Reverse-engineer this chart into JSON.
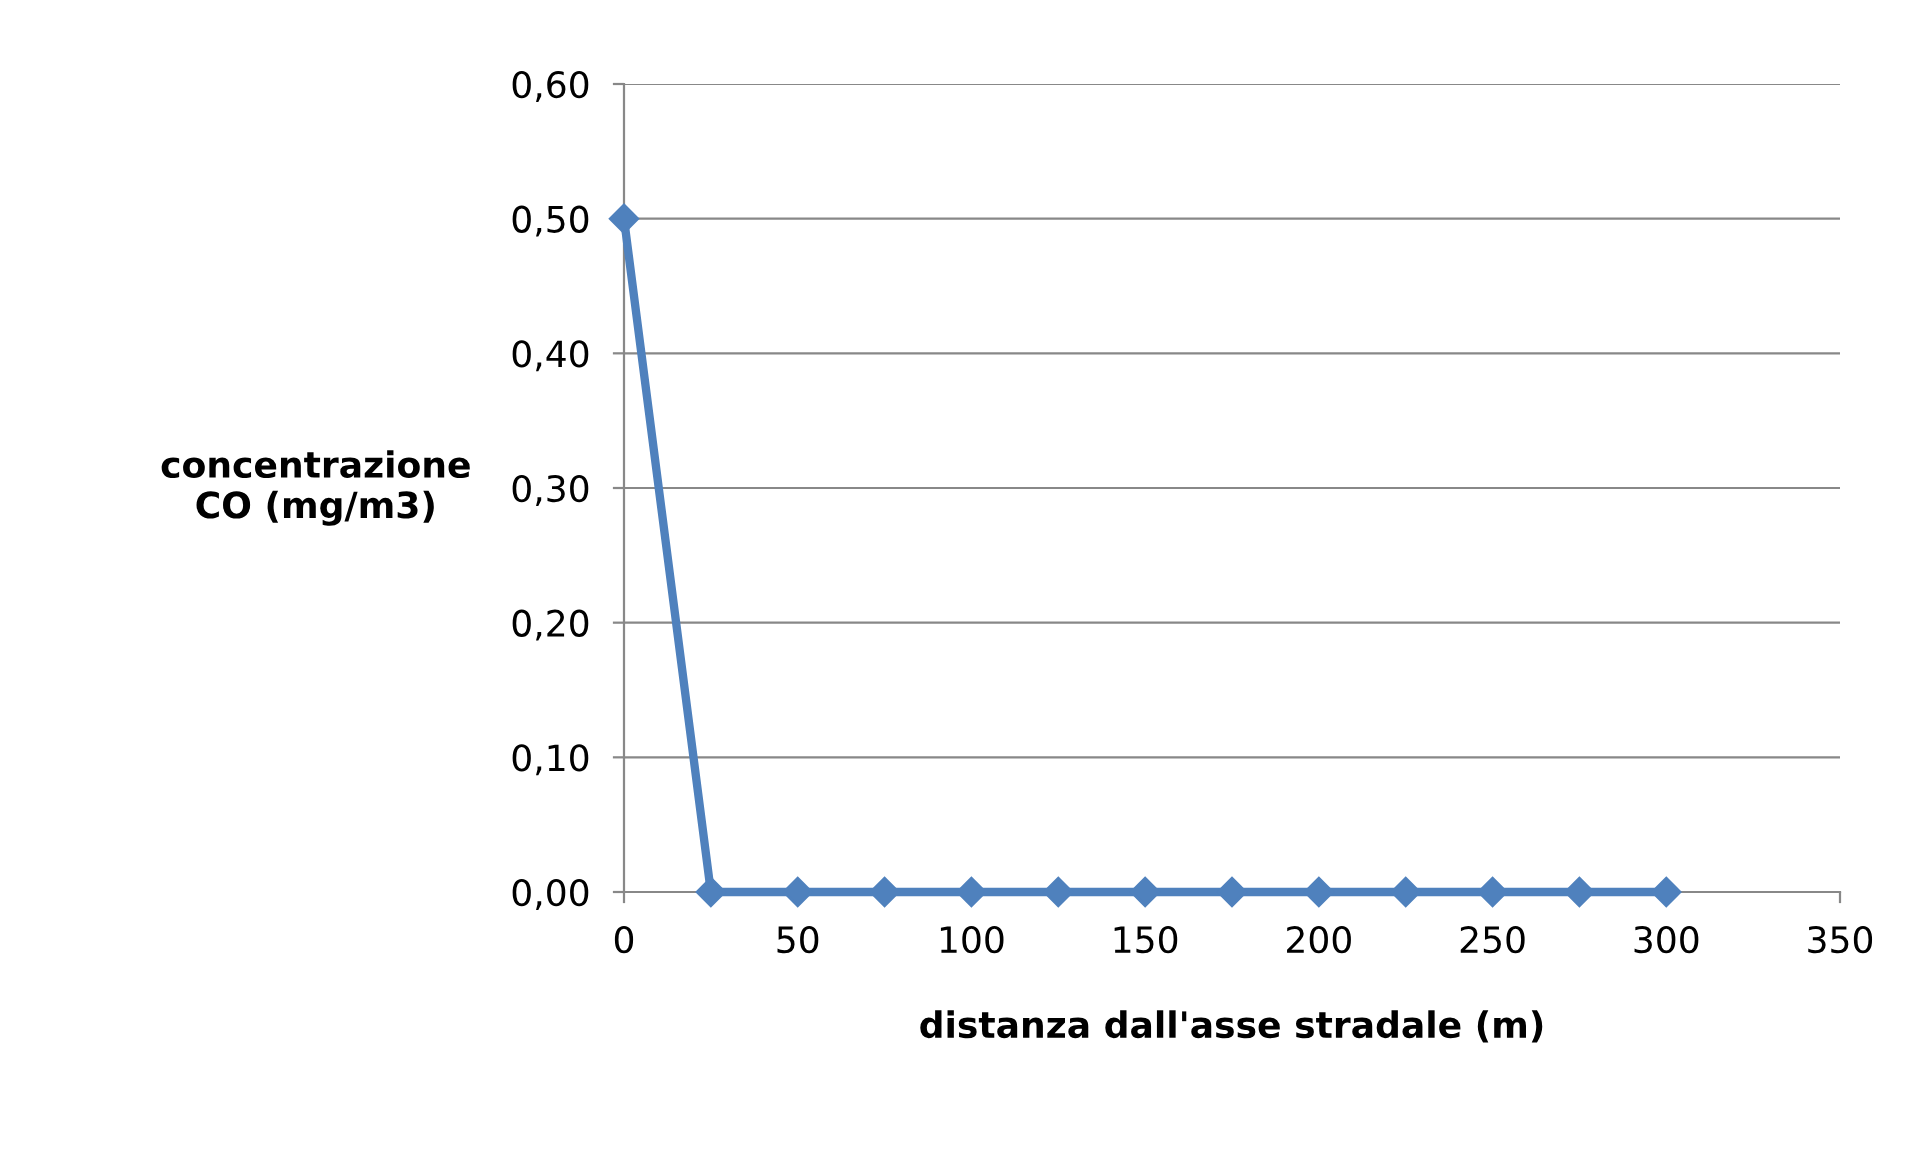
{
  "chart_data": {
    "type": "line",
    "xlabel": "distanza dall'asse stradale (m)",
    "ylabel": "concentrazione\nCO (mg/m3)",
    "x": [
      0,
      25,
      50,
      75,
      100,
      125,
      150,
      175,
      200,
      225,
      250,
      275,
      300
    ],
    "series": [
      {
        "color": "#4f81bd",
        "values": [
          0.5,
          0,
          0,
          0,
          0,
          0,
          0,
          0,
          0,
          0,
          0,
          0,
          0
        ]
      }
    ],
    "xlim": [
      0,
      350
    ],
    "xticks": [
      0,
      50,
      100,
      150,
      200,
      250,
      300,
      350
    ],
    "ylim": [
      0,
      0.6
    ],
    "yticks": [
      {
        "value": 0,
        "label": "0,00"
      },
      {
        "value": 0.1,
        "label": "0,10"
      },
      {
        "value": 0.2,
        "label": "0,20"
      },
      {
        "value": 0.3,
        "label": "0,30"
      },
      {
        "value": 0.4,
        "label": "0,40"
      },
      {
        "value": 0.5,
        "label": "0,50"
      },
      {
        "value": 0.6,
        "label": "0,60"
      }
    ],
    "grid": "y",
    "marker": "diamond",
    "line_style": "solid",
    "legend": false
  }
}
